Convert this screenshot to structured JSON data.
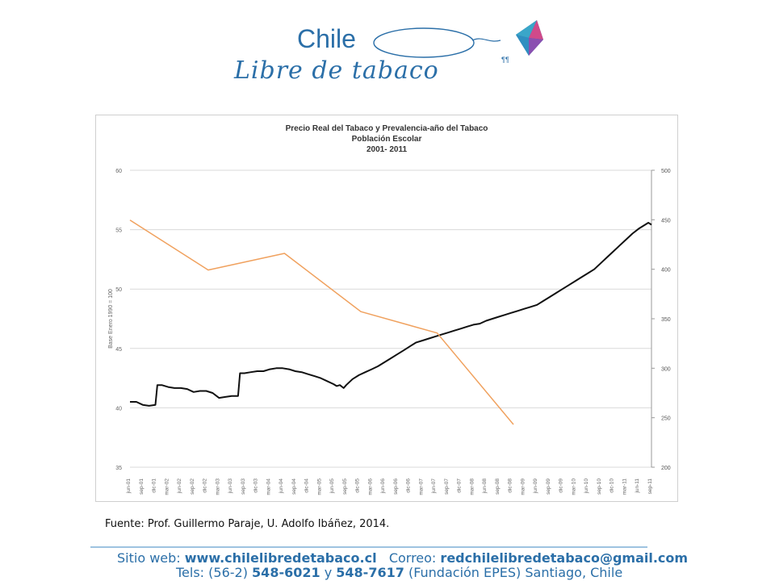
{
  "logo": {
    "line1": "Chile",
    "line2": "Libre de tabaco"
  },
  "source_text": "Fuente: Prof. Guillermo Paraje, U. Adolfo Ibáñez, 2014.",
  "footer": {
    "web_label": "Sitio web:",
    "web_value": "www.chilelibredetabaco.cl",
    "mail_label": "Correo:",
    "mail_value": "redchilelibredetabaco@gmail.com",
    "tel_label": "Tels: (56-2)",
    "tel1": "548-6021",
    "tel_and": "y",
    "tel2": "548-7617",
    "tel_rest": "(Fundación EPES)  Santiago, Chile"
  },
  "colors": {
    "brand": "#2b6fa8",
    "price_line": "#111111",
    "prevalence_line": "#f0a15e",
    "grid": "#d9d9d9"
  },
  "chart_data": {
    "type": "line",
    "title": "Precio Real del Tabaco y Prevalencia-año del Tabaco",
    "subtitle": "Población Escolar",
    "subtitle2": "2001- 2011",
    "ylabel": "Base Enero 1990 = 100",
    "ylim": [
      35,
      60
    ],
    "y_ticks": [
      35,
      40,
      45,
      50,
      55,
      60
    ],
    "y2lim": [
      200,
      500
    ],
    "y2_ticks": [
      200,
      250,
      300,
      350,
      400,
      450,
      500
    ],
    "x_tick_labels": [
      "jun-01",
      "sep-01",
      "dic-01",
      "mar-02",
      "jun-02",
      "sep-02",
      "dic-02",
      "mar-03",
      "jun-03",
      "sep-03",
      "dic-03",
      "mar-04",
      "jun-04",
      "sep-04",
      "dic-04",
      "mar-05",
      "jun-05",
      "sep-05",
      "dic-05",
      "mar-06",
      "jun-06",
      "sep-06",
      "dic-06",
      "mar-07",
      "jun-07",
      "sep-07",
      "dic-07",
      "mar-08",
      "jun-08",
      "sep-08",
      "dic-08",
      "mar-09",
      "jun-09",
      "sep-09",
      "dic-09",
      "mar-10",
      "jun-10",
      "sep-10",
      "dic-10",
      "mar-11",
      "jun-11",
      "sep-11"
    ],
    "grid": true,
    "series": [
      {
        "axis": "right",
        "color": "#111111",
        "values": [
          {
            "x": 0,
            "y": 266
          },
          {
            "x": 1,
            "y": 266
          },
          {
            "x": 2,
            "y": 263
          },
          {
            "x": 3,
            "y": 262
          },
          {
            "x": 4,
            "y": 263
          },
          {
            "x": 4.3,
            "y": 283
          },
          {
            "x": 5,
            "y": 283
          },
          {
            "x": 6,
            "y": 281
          },
          {
            "x": 7,
            "y": 280
          },
          {
            "x": 8,
            "y": 280
          },
          {
            "x": 9,
            "y": 279
          },
          {
            "x": 10,
            "y": 276
          },
          {
            "x": 11,
            "y": 277
          },
          {
            "x": 12,
            "y": 277
          },
          {
            "x": 13,
            "y": 275
          },
          {
            "x": 14,
            "y": 270
          },
          {
            "x": 15,
            "y": 271
          },
          {
            "x": 16,
            "y": 272
          },
          {
            "x": 17,
            "y": 272
          },
          {
            "x": 17.3,
            "y": 295
          },
          {
            "x": 18,
            "y": 295
          },
          {
            "x": 19,
            "y": 296
          },
          {
            "x": 20,
            "y": 297
          },
          {
            "x": 21,
            "y": 297
          },
          {
            "x": 22,
            "y": 299
          },
          {
            "x": 23,
            "y": 300
          },
          {
            "x": 24,
            "y": 300
          },
          {
            "x": 25,
            "y": 299
          },
          {
            "x": 26,
            "y": 297
          },
          {
            "x": 27,
            "y": 296
          },
          {
            "x": 28,
            "y": 294
          },
          {
            "x": 29,
            "y": 292
          },
          {
            "x": 30,
            "y": 290
          },
          {
            "x": 31,
            "y": 287
          },
          {
            "x": 32,
            "y": 284
          },
          {
            "x": 32.5,
            "y": 282
          },
          {
            "x": 33,
            "y": 283
          },
          {
            "x": 33.6,
            "y": 280
          },
          {
            "x": 34,
            "y": 283
          },
          {
            "x": 35,
            "y": 289
          },
          {
            "x": 36,
            "y": 293
          },
          {
            "x": 37,
            "y": 296
          },
          {
            "x": 38,
            "y": 299
          },
          {
            "x": 39,
            "y": 302
          },
          {
            "x": 40,
            "y": 306
          },
          {
            "x": 41,
            "y": 310
          },
          {
            "x": 42,
            "y": 314
          },
          {
            "x": 43,
            "y": 318
          },
          {
            "x": 44,
            "y": 322
          },
          {
            "x": 45,
            "y": 326
          },
          {
            "x": 46,
            "y": 328
          },
          {
            "x": 47,
            "y": 330
          },
          {
            "x": 48,
            "y": 332
          },
          {
            "x": 49,
            "y": 334
          },
          {
            "x": 50,
            "y": 336
          },
          {
            "x": 51,
            "y": 338
          },
          {
            "x": 52,
            "y": 340
          },
          {
            "x": 53,
            "y": 342
          },
          {
            "x": 54,
            "y": 344
          },
          {
            "x": 55,
            "y": 345
          },
          {
            "x": 56,
            "y": 348
          },
          {
            "x": 57,
            "y": 350
          },
          {
            "x": 58,
            "y": 352
          },
          {
            "x": 59,
            "y": 354
          },
          {
            "x": 60,
            "y": 356
          },
          {
            "x": 61,
            "y": 358
          },
          {
            "x": 62,
            "y": 360
          },
          {
            "x": 63,
            "y": 362
          },
          {
            "x": 64,
            "y": 364
          },
          {
            "x": 65,
            "y": 368
          },
          {
            "x": 66,
            "y": 372
          },
          {
            "x": 67,
            "y": 376
          },
          {
            "x": 68,
            "y": 380
          },
          {
            "x": 69,
            "y": 384
          },
          {
            "x": 70,
            "y": 388
          },
          {
            "x": 71,
            "y": 392
          },
          {
            "x": 72,
            "y": 396
          },
          {
            "x": 73,
            "y": 400
          },
          {
            "x": 74,
            "y": 406
          },
          {
            "x": 75,
            "y": 412
          },
          {
            "x": 76,
            "y": 418
          },
          {
            "x": 77,
            "y": 424
          },
          {
            "x": 78,
            "y": 430
          },
          {
            "x": 79,
            "y": 436
          },
          {
            "x": 80,
            "y": 441
          },
          {
            "x": 81,
            "y": 445
          },
          {
            "x": 81.5,
            "y": 447
          },
          {
            "x": 82,
            "y": 445
          }
        ]
      },
      {
        "axis": "left",
        "color": "#f0a15e",
        "values": [
          {
            "x": 0,
            "y": 55.8
          },
          {
            "x": 12.3,
            "y": 51.6
          },
          {
            "x": 24.3,
            "y": 53.0
          },
          {
            "x": 36.3,
            "y": 48.1
          },
          {
            "x": 48.3,
            "y": 46.3
          },
          {
            "x": 60.3,
            "y": 38.6
          }
        ]
      }
    ]
  }
}
